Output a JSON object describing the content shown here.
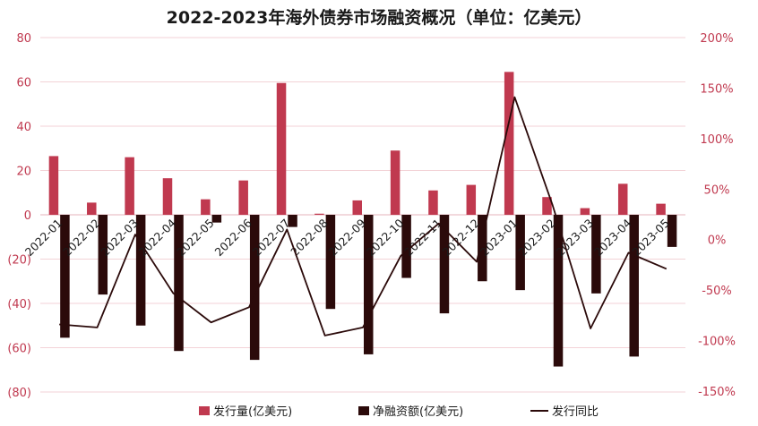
{
  "chart_data": {
    "type": "bar",
    "title": "2022-2023年海外债券市场融资概况（单位：亿美元）",
    "categories": [
      "2022-01",
      "2022-02",
      "2022-03",
      "2022-04",
      "2022-05",
      "2022-06",
      "2022-07",
      "2022-08",
      "2022-09",
      "2022-10",
      "2022-11",
      "2022-12",
      "2023-01",
      "2023-02",
      "2023-03",
      "2023-04",
      "2023-05"
    ],
    "series": [
      {
        "name": "发行量(亿美元)",
        "type": "bar",
        "axis": "left",
        "color": "#c0394f",
        "values": [
          26.5,
          5.5,
          26,
          16.5,
          7,
          15.5,
          59.5,
          0.5,
          6.5,
          29,
          11,
          13.5,
          64.5,
          8,
          3,
          14,
          5
        ]
      },
      {
        "name": "净融资额(亿美元)",
        "type": "bar",
        "axis": "left",
        "color": "#2b0a0a",
        "values": [
          -55.5,
          -36,
          -50,
          -61.5,
          -3.5,
          -65.5,
          -5.5,
          -42.5,
          -63,
          -28.5,
          -44.5,
          -30,
          -34,
          -68.5,
          -35.5,
          -64,
          -14.5
        ]
      },
      {
        "name": "发行同比",
        "type": "line",
        "axis": "right",
        "color": "#2b0a0a",
        "values": [
          -84,
          -87,
          5,
          -53,
          -82,
          -67,
          10,
          -95,
          -87,
          -16,
          16,
          -22,
          141,
          34,
          -88,
          -13,
          -29
        ]
      }
    ],
    "y_left": {
      "ticks": [
        "80",
        "60",
        "40",
        "20",
        "0",
        "(20)",
        "(40)",
        "(60)",
        "(80)"
      ],
      "min": -80,
      "max": 80
    },
    "y_right": {
      "ticks": [
        "200%",
        "150%",
        "100%",
        "50%",
        "0%",
        "-50%",
        "-100%",
        "-150%"
      ],
      "min": -150,
      "max": 200
    },
    "grid": true,
    "legend_position": "bottom"
  }
}
